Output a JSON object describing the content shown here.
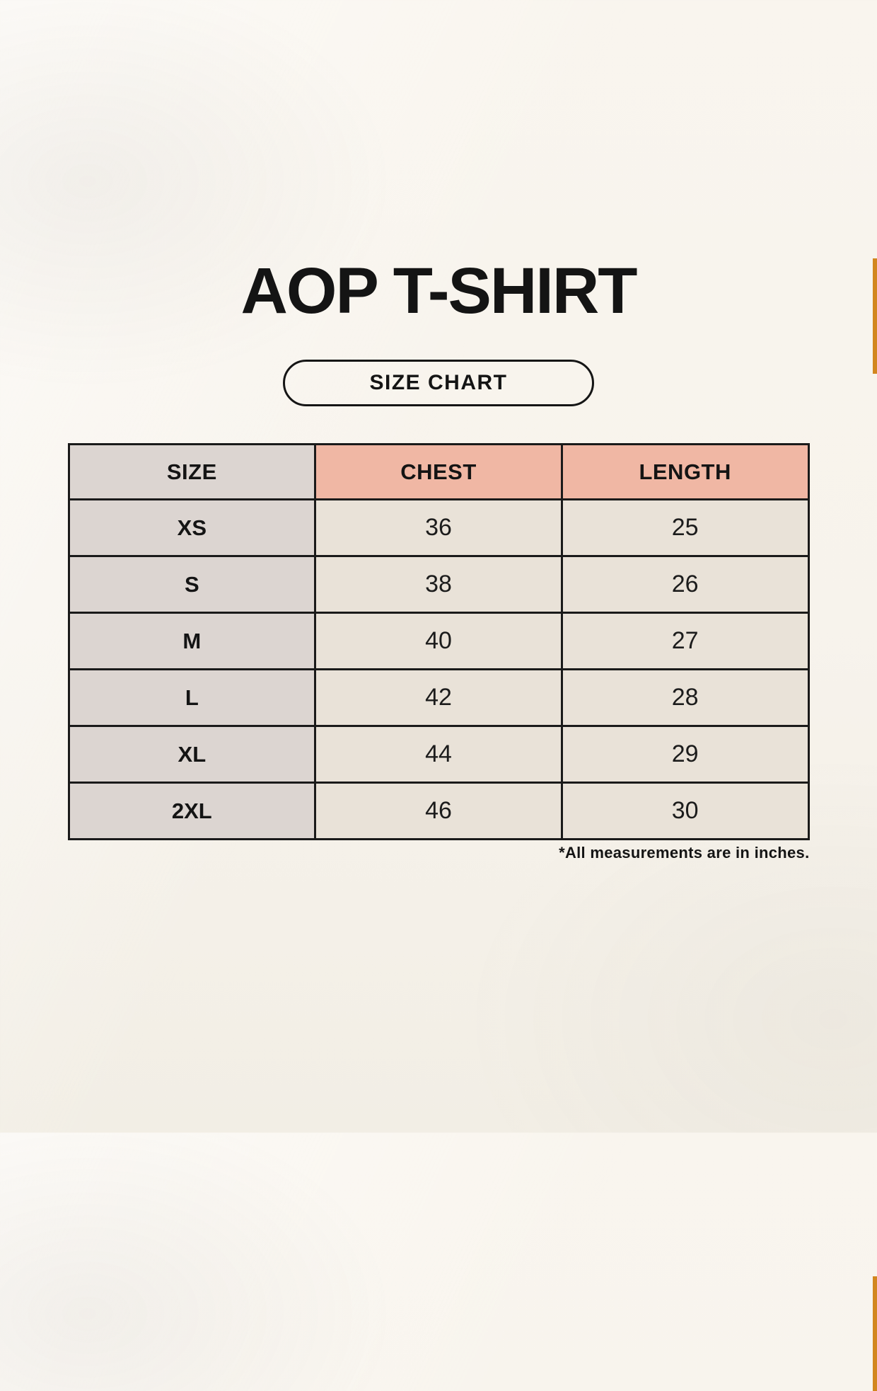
{
  "page": {
    "title": "AOP T-SHIRT",
    "badge": "SIZE CHART",
    "footnote": "*All measurements are in inches."
  },
  "table": {
    "columns": [
      "SIZE",
      "CHEST",
      "LENGTH"
    ],
    "rows": [
      {
        "size": "XS",
        "chest": "36",
        "length": "25"
      },
      {
        "size": "S",
        "chest": "38",
        "length": "26"
      },
      {
        "size": "M",
        "chest": "40",
        "length": "27"
      },
      {
        "size": "L",
        "chest": "42",
        "length": "28"
      },
      {
        "size": "XL",
        "chest": "44",
        "length": "29"
      },
      {
        "size": "2XL",
        "chest": "46",
        "length": "30"
      }
    ]
  },
  "colors": {
    "background": "#f7f3ec",
    "accent_stripe": "#d2861f",
    "header_highlight": "#f0b7a4",
    "size_column": "#dcd5d1",
    "cell_cream": "#e9e2d8",
    "table_border": "#1a1a1a",
    "text": "#141414"
  }
}
